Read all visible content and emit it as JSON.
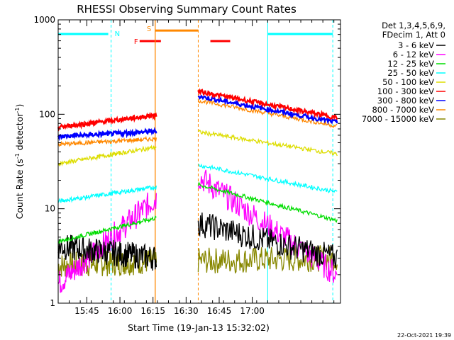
{
  "chart_data": {
    "type": "line",
    "title": "RHESSI Observing Summary Count Rates",
    "xlabel": "Start Time (19-Jan-13 15:32:02)",
    "ylabel_main": "Count Rate (s",
    "ylabel_sup1": "-1",
    "ylabel_mid": " detector",
    "ylabel_sup2": "-1",
    "ylabel_end": ")",
    "x_range_min": [
      0,
      128
    ],
    "y_scale": "log",
    "y_range": [
      1,
      1000
    ],
    "y_ticks": [
      {
        "v": 1,
        "label": "1"
      },
      {
        "v": 10,
        "label": "10"
      },
      {
        "v": 100,
        "label": "100"
      },
      {
        "v": 1000,
        "label": "1000"
      }
    ],
    "x_ticks": [
      {
        "t": 13,
        "label": "15:45"
      },
      {
        "t": 28,
        "label": "16:00"
      },
      {
        "t": 43,
        "label": "16:15"
      },
      {
        "t": 58,
        "label": "16:30"
      },
      {
        "t": 73,
        "label": "16:45"
      },
      {
        "t": 88,
        "label": "17:00"
      }
    ],
    "legend_header": [
      "Det 1,3,4,5,6,9,",
      "FDecim 1, Att 0"
    ],
    "legend_position": "top-right",
    "series": [
      {
        "name": "3 - 6 keV",
        "color": "#000000",
        "seg1": {
          "start": 4,
          "end": 3
        },
        "seg2": {
          "start": 7,
          "end": 3
        }
      },
      {
        "name": "6 - 12 keV",
        "color": "#ff00ff",
        "seg1": {
          "start": 1.6,
          "end": 13
        },
        "seg2": {
          "start": 22,
          "end": 2
        }
      },
      {
        "name": "12 - 25 keV",
        "color": "#00dd00",
        "seg1": {
          "start": 4.5,
          "end": 8
        },
        "seg2": {
          "start": 18,
          "end": 7.5
        }
      },
      {
        "name": "25 - 50 keV",
        "color": "#00ffff",
        "seg1": {
          "start": 12,
          "end": 17
        },
        "seg2": {
          "start": 29,
          "end": 15
        }
      },
      {
        "name": "50 - 100 keV",
        "color": "#dddd00",
        "seg1": {
          "start": 30,
          "end": 45
        },
        "seg2": {
          "start": 65,
          "end": 38
        }
      },
      {
        "name": "100 - 300 keV",
        "color": "#ff0000",
        "seg1": {
          "start": 73,
          "end": 98
        },
        "seg2": {
          "start": 175,
          "end": 92
        }
      },
      {
        "name": "300 - 800 keV",
        "color": "#0000ff",
        "seg1": {
          "start": 58,
          "end": 66
        },
        "seg2": {
          "start": 155,
          "end": 82
        }
      },
      {
        "name": "800 - 7000 keV",
        "color": "#ff8800",
        "seg1": {
          "start": 48,
          "end": 55
        },
        "seg2": {
          "start": 140,
          "end": 75
        }
      },
      {
        "name": "7000 - 15000 keV",
        "color": "#888800",
        "seg1": {
          "start": 2.5,
          "end": 2.8
        },
        "seg2": {
          "start": 2.8,
          "end": 3
        }
      }
    ],
    "segments_time": [
      [
        0,
        44.5
      ],
      [
        63.5,
        126.5
      ]
    ],
    "annotations": [
      {
        "label": "N",
        "color": "#00ffff",
        "t": 24
      },
      {
        "label": "F",
        "color": "#ff0000",
        "t": 35
      },
      {
        "label": "S",
        "color": "#ff8800",
        "t": 44
      }
    ],
    "saa_band_value": 770,
    "footer_date": "22-Oct-2021 19:39"
  }
}
